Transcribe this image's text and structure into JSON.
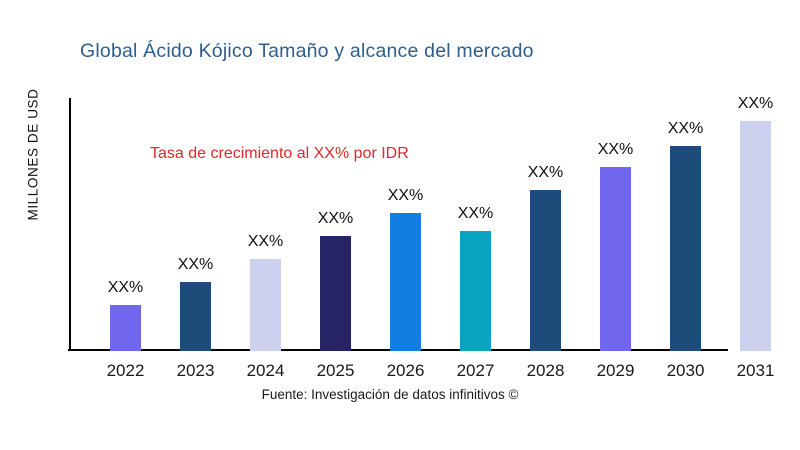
{
  "chart_data": {
    "type": "bar",
    "title": "Global Ácido Kójico Tamaño y alcance del mercado",
    "title_color": "#2e5e8e",
    "ylabel": "MILLONES DE USD",
    "xlabel": "",
    "annotation_text": "Tasa de crecimiento al XX% por IDR",
    "annotation_color": "#e32626",
    "source": "Fuente: Investigación de datos infinitivos ©",
    "categories": [
      "2022",
      "2023",
      "2024",
      "2025",
      "2026",
      "2027",
      "2028",
      "2029",
      "2030",
      "2031"
    ],
    "bar_labels": [
      "XX%",
      "XX%",
      "XX%",
      "XX%",
      "XX%",
      "XX%",
      "XX%",
      "XX%",
      "XX%",
      "XX%"
    ],
    "values_pct_of_max": [
      20,
      30,
      40,
      50,
      60,
      52,
      70,
      80,
      89,
      100
    ],
    "bar_colors": [
      "#7166ee",
      "#1d4b7a",
      "#ccd1f0",
      "#262366",
      "#137ee2",
      "#0aa4c0",
      "#1d4b7a",
      "#7166ee",
      "#1d4b7a",
      "#ccd1f0"
    ],
    "axis_color": "#000000",
    "grid": false,
    "legend": false,
    "ylim_note": "axis unlabeled; values shown only as XX% data labels"
  }
}
